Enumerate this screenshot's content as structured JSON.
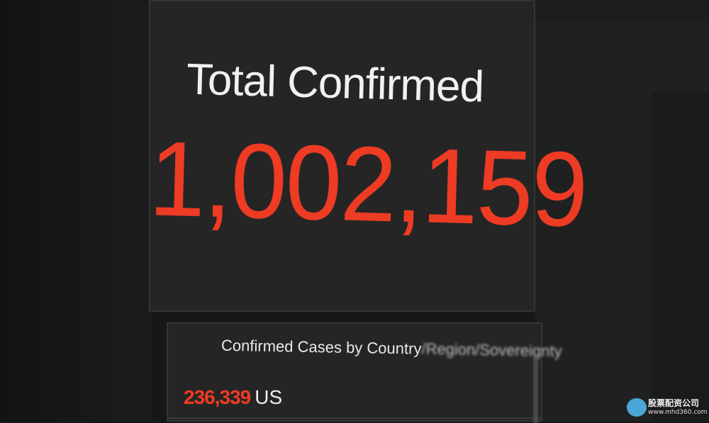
{
  "summary": {
    "title": "Total Confirmed",
    "total": "1,002,159"
  },
  "country_list": {
    "title_clear": "Confirmed Cases by Country",
    "title_blurred": "/Region/Sovereignty",
    "rows": [
      {
        "count": "236,339",
        "country": "US"
      }
    ]
  },
  "colors": {
    "accent_red": "#ee3b24",
    "panel_bg": "#252525",
    "background": "#161818"
  },
  "watermark": {
    "name": "股票配资公司",
    "url": "www.mhd360.com"
  }
}
